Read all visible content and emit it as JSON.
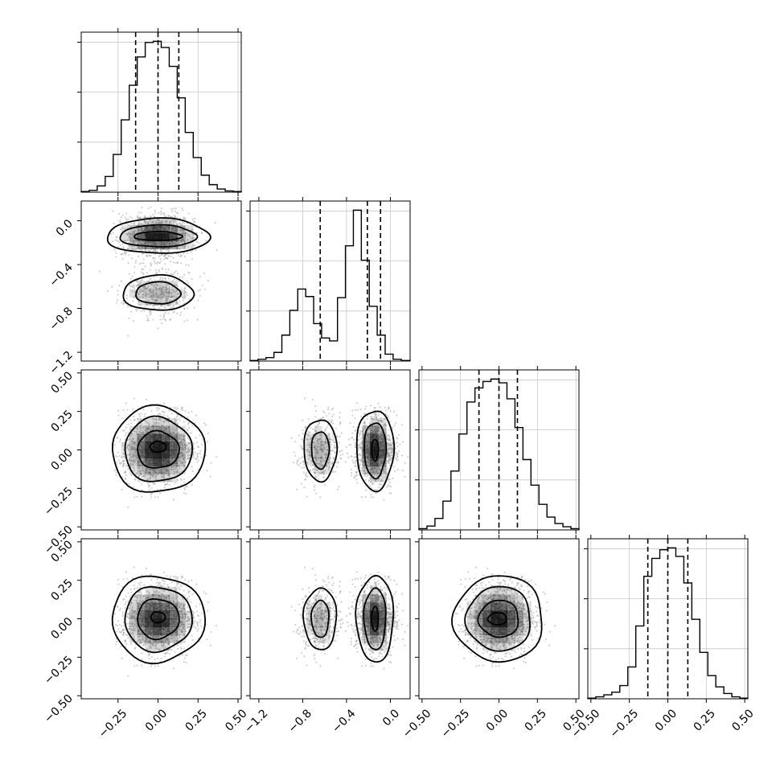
{
  "chart_data": {
    "type": "corner",
    "grid": true,
    "colors": {
      "line": "#000000",
      "grid": "#c8c8c8",
      "shade": "#000000",
      "scatter": "#9a9a9a"
    },
    "parameters": [
      {
        "ticks": [
          -0.25,
          0.0,
          0.25,
          0.5
        ],
        "tick_labels": [
          "−0.25",
          "0.00",
          "0.25",
          "0.50"
        ],
        "range": [
          -0.48,
          0.52
        ]
      },
      {
        "ticks": [
          -1.2,
          -0.8,
          -0.4,
          0.0
        ],
        "tick_labels": [
          "−1.2",
          "−0.8",
          "−0.4",
          "0.0"
        ],
        "range": [
          -1.28,
          0.18
        ]
      },
      {
        "ticks": [
          -0.5,
          -0.25,
          0.0,
          0.25,
          0.5
        ],
        "tick_labels": [
          "−0.50",
          "−0.25",
          "0.00",
          "0.25",
          "0.50"
        ],
        "range": [
          -0.52,
          0.52
        ]
      },
      {
        "ticks": [
          -0.5,
          -0.25,
          0.0,
          0.25,
          0.5
        ],
        "tick_labels": [
          "−0.50",
          "−0.25",
          "0.00",
          "0.25",
          "0.50"
        ],
        "range": [
          -0.52,
          0.52
        ]
      }
    ],
    "histograms": [
      {
        "parameter": 0,
        "bins": [
          -0.48,
          -0.43,
          -0.38,
          -0.33,
          -0.28,
          -0.23,
          -0.18,
          -0.13,
          -0.08,
          -0.03,
          0.02,
          0.07,
          0.12,
          0.17,
          0.22,
          0.27,
          0.32,
          0.37,
          0.42,
          0.47,
          0.52
        ],
        "counts": [
          1,
          3,
          10,
          25,
          60,
          115,
          170,
          215,
          238,
          240,
          230,
          200,
          150,
          95,
          55,
          27,
          12,
          5,
          2,
          1
        ],
        "quantiles": [
          -0.14,
          0.0,
          0.13
        ]
      },
      {
        "parameter": 1,
        "bins": [
          -1.28,
          -1.2075,
          -1.135,
          -1.0625,
          -0.99,
          -0.9175,
          -0.845,
          -0.7725,
          -0.7,
          -0.6275,
          -0.555,
          -0.4825,
          -0.41,
          -0.3375,
          -0.265,
          -0.1925,
          -0.12,
          -0.0475,
          0.025,
          0.1,
          0.18
        ],
        "counts": [
          1,
          3,
          6,
          15,
          45,
          88,
          125,
          112,
          65,
          40,
          35,
          110,
          200,
          262,
          175,
          95,
          45,
          12,
          3,
          1
        ],
        "quantiles": [
          -0.64,
          -0.21,
          -0.09
        ]
      },
      {
        "parameter": 2,
        "bins": [
          -0.52,
          -0.468,
          -0.416,
          -0.364,
          -0.312,
          -0.26,
          -0.208,
          -0.156,
          -0.104,
          -0.052,
          0.0,
          0.052,
          0.104,
          0.156,
          0.208,
          0.26,
          0.312,
          0.364,
          0.416,
          0.468,
          0.52
        ],
        "counts": [
          2,
          6,
          18,
          45,
          92,
          150,
          200,
          222,
          232,
          236,
          230,
          205,
          160,
          110,
          70,
          40,
          20,
          10,
          5,
          2
        ],
        "quantiles": [
          -0.13,
          0.0,
          0.12
        ]
      },
      {
        "parameter": 3,
        "bins": [
          -0.52,
          -0.468,
          -0.416,
          -0.364,
          -0.312,
          -0.26,
          -0.208,
          -0.156,
          -0.104,
          -0.052,
          0.0,
          0.052,
          0.104,
          0.156,
          0.208,
          0.26,
          0.312,
          0.364,
          0.416,
          0.468,
          0.52
        ],
        "counts": [
          1,
          3,
          6,
          10,
          20,
          48,
          110,
          185,
          212,
          225,
          228,
          215,
          175,
          120,
          70,
          35,
          18,
          8,
          3,
          1
        ],
        "quantiles": [
          -0.13,
          0.0,
          0.13
        ]
      }
    ],
    "densities": [
      {
        "x": 0,
        "y": 1,
        "spread": [
          0.11,
          0.22
        ],
        "modes": [
          {
            "cx": 0.0,
            "cy": -0.14,
            "sx": 0.11,
            "sy": 0.075,
            "w": 0.72
          },
          {
            "cx": 0.0,
            "cy": -0.66,
            "sx": 0.11,
            "sy": 0.085,
            "w": 0.28
          }
        ],
        "contours": [
          [
            0.0,
            -0.14,
            0.15,
            0.04
          ],
          [
            0.0,
            -0.14,
            0.24,
            0.1
          ],
          [
            0.0,
            -0.14,
            0.32,
            0.16
          ],
          [
            0.0,
            -0.66,
            0.14,
            0.1
          ],
          [
            0.0,
            -0.66,
            0.22,
            0.16
          ]
        ]
      },
      {
        "x": 0,
        "y": 2,
        "spread": [
          0.11,
          0.11
        ],
        "modes": [
          {
            "cx": 0.0,
            "cy": 0.0,
            "sx": 0.1,
            "sy": 0.1,
            "w": 1.0
          }
        ],
        "contours": [
          [
            0.0,
            0.02,
            0.05,
            0.035
          ],
          [
            0.0,
            0.0,
            0.13,
            0.12
          ],
          [
            0.0,
            0.0,
            0.21,
            0.21
          ],
          [
            0.0,
            0.0,
            0.29,
            0.28
          ]
        ]
      },
      {
        "x": 0,
        "y": 3,
        "spread": [
          0.11,
          0.11
        ],
        "modes": [
          {
            "cx": 0.0,
            "cy": 0.0,
            "sx": 0.1,
            "sy": 0.1,
            "w": 1.0
          }
        ],
        "contours": [
          [
            0.0,
            0.01,
            0.045,
            0.035
          ],
          [
            0.0,
            0.0,
            0.13,
            0.13
          ],
          [
            0.0,
            0.0,
            0.21,
            0.21
          ],
          [
            0.0,
            0.0,
            0.29,
            0.28
          ]
        ]
      },
      {
        "x": 1,
        "y": 2,
        "spread": [
          0.2,
          0.11
        ],
        "modes": [
          {
            "cx": -0.14,
            "cy": 0.0,
            "sx": 0.07,
            "sy": 0.1,
            "w": 0.72
          },
          {
            "cx": -0.64,
            "cy": 0.0,
            "sx": 0.08,
            "sy": 0.1,
            "w": 0.28
          }
        ],
        "contours": [
          [
            -0.14,
            0.0,
            0.03,
            0.07
          ],
          [
            -0.14,
            0.0,
            0.1,
            0.18
          ],
          [
            -0.14,
            0.0,
            0.17,
            0.26
          ],
          [
            -0.64,
            0.0,
            0.08,
            0.12
          ],
          [
            -0.64,
            0.0,
            0.15,
            0.2
          ]
        ]
      },
      {
        "x": 1,
        "y": 3,
        "spread": [
          0.2,
          0.11
        ],
        "modes": [
          {
            "cx": -0.14,
            "cy": 0.0,
            "sx": 0.07,
            "sy": 0.1,
            "w": 0.72
          },
          {
            "cx": -0.64,
            "cy": 0.0,
            "sx": 0.08,
            "sy": 0.1,
            "w": 0.28
          }
        ],
        "contours": [
          [
            -0.14,
            0.0,
            0.03,
            0.08
          ],
          [
            -0.14,
            0.0,
            0.1,
            0.2
          ],
          [
            -0.14,
            0.0,
            0.17,
            0.28
          ],
          [
            -0.64,
            0.0,
            0.08,
            0.12
          ],
          [
            -0.64,
            0.0,
            0.15,
            0.2
          ]
        ]
      },
      {
        "x": 2,
        "y": 3,
        "spread": [
          0.11,
          0.11
        ],
        "modes": [
          {
            "cx": 0.0,
            "cy": 0.0,
            "sx": 0.1,
            "sy": 0.1,
            "w": 1.0
          }
        ],
        "contours": [
          [
            -0.01,
            0.0,
            0.06,
            0.04
          ],
          [
            0.0,
            0.0,
            0.13,
            0.12
          ],
          [
            0.0,
            0.0,
            0.21,
            0.21
          ],
          [
            0.0,
            0.0,
            0.29,
            0.28
          ]
        ]
      }
    ]
  }
}
